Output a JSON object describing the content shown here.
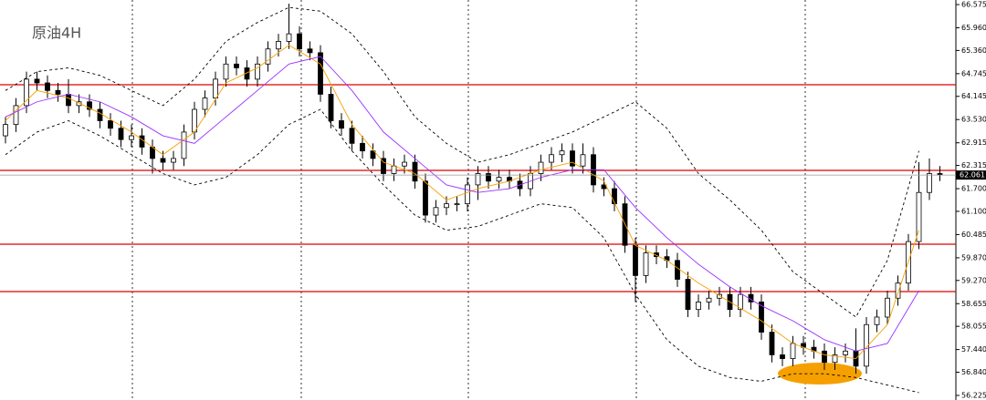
{
  "chart_data": {
    "type": "candlestick",
    "title": "原油4H",
    "open": [
      63.1,
      63.4,
      63.9,
      64.6,
      64.5,
      64.3,
      64.2,
      63.9,
      64.0,
      63.8,
      63.5,
      63.3,
      63.0,
      63.1,
      62.8,
      62.5,
      62.4,
      62.5,
      63.2,
      63.8,
      64.1,
      64.6,
      65.0,
      64.9,
      64.6,
      65.0,
      65.4,
      65.6,
      65.8,
      65.4,
      65.3,
      64.2,
      63.5,
      63.3,
      62.9,
      62.7,
      62.5,
      62.1,
      62.3,
      62.4,
      61.9,
      61.0,
      61.2,
      61.3,
      61.3,
      61.8,
      62.1,
      61.9,
      62.0,
      61.9,
      61.7,
      62.1,
      62.4,
      62.6,
      62.7,
      62.3,
      62.6,
      61.8,
      61.7,
      61.3,
      60.2,
      59.4,
      60.0,
      59.9,
      59.8,
      59.3,
      58.5,
      58.7,
      58.8,
      58.9,
      58.5,
      58.9,
      58.7,
      57.9,
      57.3,
      57.2,
      57.6,
      57.5,
      57.4,
      57.1,
      57.3,
      57.4,
      57.0,
      58.1,
      58.3,
      58.8,
      59.2,
      60.3,
      61.6,
      62.1
    ],
    "high": [
      63.6,
      64.1,
      64.8,
      64.8,
      64.7,
      64.5,
      64.6,
      64.2,
      64.2,
      64.0,
      63.7,
      63.5,
      63.4,
      63.3,
      63.0,
      62.7,
      62.7,
      63.4,
      64.0,
      64.3,
      64.8,
      65.2,
      65.2,
      65.1,
      65.2,
      65.6,
      65.8,
      66.6,
      66.0,
      65.6,
      65.5,
      64.4,
      63.7,
      63.5,
      63.1,
      62.9,
      62.7,
      62.5,
      62.6,
      62.6,
      62.1,
      61.4,
      61.5,
      61.5,
      62.0,
      62.3,
      62.3,
      62.2,
      62.2,
      62.1,
      62.3,
      62.6,
      62.8,
      62.9,
      62.9,
      62.9,
      62.8,
      62.0,
      61.9,
      61.5,
      60.4,
      60.2,
      60.2,
      60.1,
      60.0,
      59.5,
      58.9,
      59.0,
      59.1,
      59.1,
      59.1,
      59.1,
      58.9,
      58.1,
      57.5,
      57.8,
      57.8,
      57.7,
      57.6,
      57.5,
      57.6,
      58.0,
      58.3,
      58.5,
      59.0,
      59.4,
      60.5,
      62.4,
      62.5,
      62.3
    ],
    "low": [
      62.9,
      63.2,
      63.7,
      64.3,
      64.1,
      64.0,
      63.7,
      63.7,
      63.6,
      63.3,
      63.1,
      62.8,
      62.8,
      62.6,
      62.1,
      62.2,
      62.2,
      62.3,
      63.0,
      63.6,
      63.9,
      64.4,
      64.7,
      64.4,
      64.4,
      64.8,
      65.2,
      65.4,
      65.2,
      65.1,
      64.0,
      63.3,
      63.1,
      62.7,
      62.5,
      62.3,
      61.9,
      61.9,
      62.1,
      61.7,
      60.8,
      60.8,
      61.0,
      61.1,
      61.1,
      61.4,
      61.7,
      61.7,
      61.7,
      61.5,
      61.5,
      61.9,
      62.2,
      62.4,
      62.1,
      62.1,
      61.6,
      61.5,
      61.1,
      60.0,
      58.7,
      59.2,
      59.7,
      59.6,
      59.1,
      58.3,
      58.3,
      58.5,
      58.6,
      58.3,
      58.3,
      58.5,
      57.7,
      57.1,
      57.0,
      57.0,
      57.3,
      57.2,
      56.9,
      56.9,
      57.1,
      56.8,
      56.8,
      57.9,
      58.1,
      58.6,
      59.0,
      60.1,
      61.4,
      61.9
    ],
    "close": [
      63.4,
      63.9,
      64.6,
      64.5,
      64.3,
      64.2,
      63.9,
      64.0,
      63.8,
      63.5,
      63.3,
      63.0,
      63.1,
      62.8,
      62.5,
      62.4,
      62.5,
      63.2,
      63.8,
      64.1,
      64.6,
      65.0,
      64.9,
      64.6,
      65.0,
      65.4,
      65.6,
      65.8,
      65.4,
      65.3,
      64.2,
      63.5,
      63.3,
      62.9,
      62.7,
      62.5,
      62.1,
      62.3,
      62.4,
      61.9,
      61.0,
      61.2,
      61.3,
      61.3,
      61.8,
      62.1,
      61.9,
      62.0,
      61.9,
      61.7,
      62.1,
      62.4,
      62.6,
      62.7,
      62.3,
      62.6,
      61.8,
      61.7,
      61.3,
      60.2,
      59.4,
      60.0,
      59.9,
      59.8,
      59.3,
      58.5,
      58.7,
      58.8,
      58.9,
      58.5,
      58.9,
      58.7,
      57.9,
      57.3,
      57.2,
      57.6,
      57.5,
      57.4,
      57.1,
      57.3,
      57.4,
      57.0,
      58.1,
      58.3,
      58.8,
      59.2,
      60.3,
      61.6,
      62.1,
      62.061
    ],
    "line_x": [
      0,
      3,
      6,
      9,
      12,
      15,
      18,
      21,
      24,
      27,
      30,
      33,
      36,
      39,
      42,
      45,
      48,
      51,
      54,
      57,
      60,
      63,
      66,
      69,
      72,
      75,
      78,
      81,
      84,
      87
    ],
    "lines": [
      {
        "color": "#f5a000",
        "dashed": false,
        "values": [
          63.5,
          64.3,
          64.1,
          63.7,
          63.2,
          62.6,
          63.2,
          64.5,
          64.9,
          65.5,
          65.0,
          63.4,
          62.4,
          62.1,
          61.4,
          61.7,
          61.9,
          62.2,
          62.4,
          61.9,
          60.2,
          59.8,
          59.2,
          58.7,
          58.2,
          57.6,
          57.3,
          57.2,
          58.1,
          60.6
        ]
      },
      {
        "color": "#9b30ff",
        "dashed": false,
        "values": [
          63.6,
          64.0,
          64.2,
          64.0,
          63.6,
          63.1,
          62.9,
          63.6,
          64.3,
          65.0,
          65.2,
          64.3,
          63.2,
          62.5,
          61.8,
          61.6,
          61.7,
          62.0,
          62.2,
          62.2,
          61.2,
          60.4,
          59.7,
          59.1,
          58.6,
          58.2,
          57.7,
          57.4,
          57.6,
          59.0
        ]
      },
      {
        "color": "#000000",
        "dashed": true,
        "values": [
          64.3,
          64.8,
          64.9,
          64.7,
          64.3,
          63.9,
          64.6,
          65.6,
          66.1,
          66.5,
          66.4,
          65.8,
          64.8,
          63.6,
          62.9,
          62.4,
          62.6,
          62.9,
          63.2,
          63.6,
          64.0,
          63.3,
          62.1,
          61.4,
          60.6,
          59.5,
          58.9,
          58.3,
          59.8,
          62.7
        ]
      },
      {
        "color": "#000000",
        "dashed": true,
        "values": [
          62.6,
          63.2,
          63.5,
          63.1,
          62.6,
          62.1,
          61.8,
          62.0,
          62.6,
          63.4,
          63.8,
          62.7,
          61.8,
          61.0,
          60.6,
          60.7,
          61.0,
          61.3,
          61.2,
          60.4,
          58.9,
          57.7,
          57.0,
          56.7,
          56.6,
          56.8,
          56.8,
          56.7,
          56.5,
          56.3
        ]
      }
    ],
    "hlines": [
      64.452,
      62.184,
      60.23,
      58.975
    ],
    "hline_color": "#e00000",
    "up_color": "#ffffff",
    "down_color": "#000000",
    "ylim": [
      56.104,
      66.696
    ],
    "yticks": [
      66.575,
      {
        "value": 65.96,
        "label": "65.960"
      },
      {
        "value": 65.36,
        "label": "65.360"
      },
      64.745,
      64.145,
      {
        "value": 63.53,
        "label": "63.530"
      },
      62.915,
      62.315,
      {
        "value": 61.7,
        "label": "61.700"
      },
      {
        "value": 61.1,
        "label": "61.100"
      },
      60.485,
      {
        "value": 59.87,
        "label": "59.870"
      },
      {
        "value": 59.27,
        "label": "59.270"
      },
      58.655,
      58.055,
      {
        "value": 57.44,
        "label": "57.440"
      },
      {
        "value": 56.84,
        "label": "56.840"
      },
      56.225
    ]
  }
}
